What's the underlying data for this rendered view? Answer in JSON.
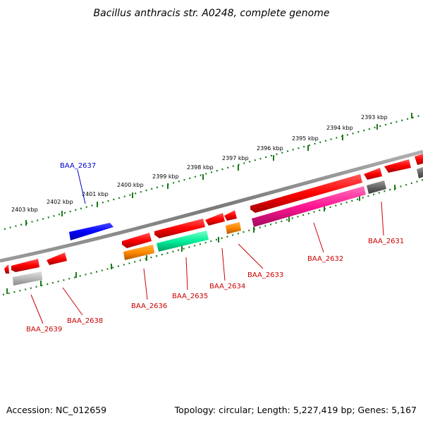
{
  "title": "Bacillus anthracis str. A0248, complete genome",
  "accession_text": "Accession: NC_012659",
  "summary_text": "Topology: circular; Length: 5,227,419 bp; Genes: 5,167",
  "kbp_labels": [
    "2403 kbp",
    "2402 kbp",
    "2401 kbp",
    "2400 kbp",
    "2399 kbp",
    "2398 kbp",
    "2397 kbp",
    "2396 kbp",
    "2395 kbp",
    "2394 kbp",
    "2393 kbp"
  ],
  "genes": [
    {
      "name": "BAA_2631",
      "color": "#cc0000"
    },
    {
      "name": "BAA_2632",
      "color": "#cc0000"
    },
    {
      "name": "BAA_2633",
      "color": "#cc0000"
    },
    {
      "name": "BAA_2634",
      "color": "#cc0000"
    },
    {
      "name": "BAA_2635",
      "color": "#cc0000"
    },
    {
      "name": "BAA_2636",
      "color": "#cc0000"
    },
    {
      "name": "BAA_2637",
      "color": "#0000cc"
    },
    {
      "name": "BAA_2638",
      "color": "#cc0000"
    },
    {
      "name": "BAA_2639",
      "color": "#cc0000"
    }
  ],
  "colors": {
    "backbone": "#808080",
    "ticks": "#1a7a1a",
    "red": "#ff0000",
    "blue": "#0000ff",
    "orange": "#ff8800",
    "spring_green": "#00ee99",
    "magenta": "#ff1493",
    "gray": "#aaaaaa",
    "dark_gray": "#666666"
  }
}
